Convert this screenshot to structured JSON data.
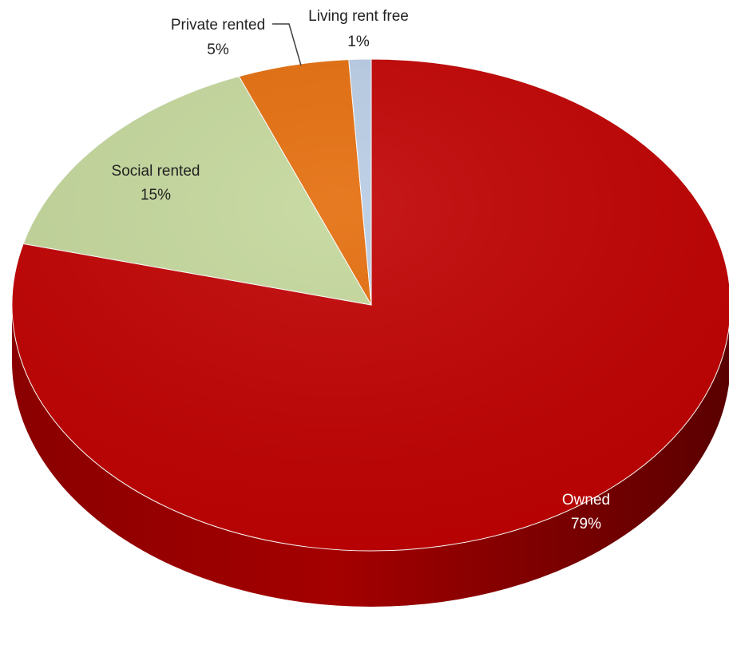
{
  "chart_data": {
    "type": "pie",
    "style": "3d",
    "slices": [
      {
        "label": "Owned",
        "value": 79,
        "value_label": "79%",
        "color": "#c00000"
      },
      {
        "label": "Social rented",
        "value": 15,
        "value_label": "15%",
        "color": "#c4d79b"
      },
      {
        "label": "Private rented",
        "value": 5,
        "value_label": "5%",
        "color": "#e46c0a"
      },
      {
        "label": "Living rent free",
        "value": 1,
        "value_label": "1%",
        "color": "#b8cce4"
      }
    ],
    "legend": "none"
  }
}
